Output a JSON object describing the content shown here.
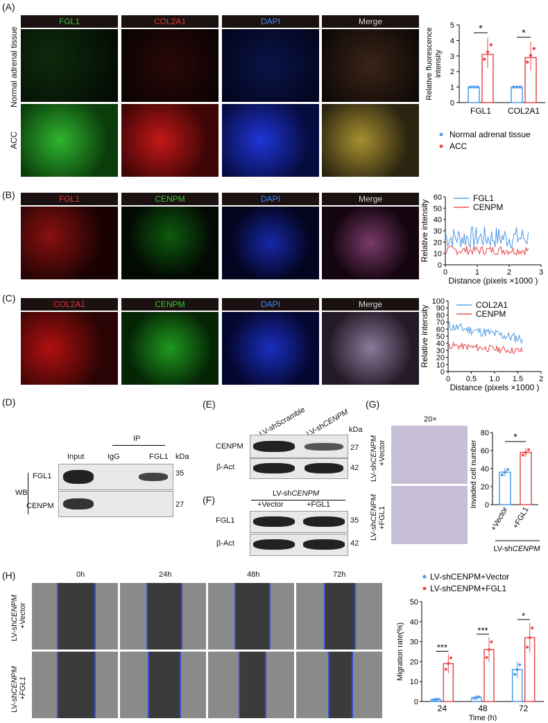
{
  "panel_labels": {
    "A": "(A)",
    "B": "(B)",
    "C": "(C)",
    "D": "(D)",
    "E": "(E)",
    "F": "(F)",
    "G": "(G)",
    "H": "(H)"
  },
  "panelA": {
    "headers": [
      "FGL1",
      "COL2A1",
      "DAPI",
      "Merge"
    ],
    "rows": [
      "Normal adrenal tissue",
      "ACC"
    ],
    "chart_data": {
      "type": "bar",
      "categories": [
        "FGL1",
        "COL2A1"
      ],
      "series": [
        {
          "name": "Normal adrenal tissue",
          "values": [
            1.0,
            1.0
          ],
          "color": "#4a9be8"
        },
        {
          "name": "ACC",
          "values": [
            3.1,
            2.9
          ],
          "color": "#e84a4a"
        }
      ],
      "ylabel": "Relative fluorescence intensity",
      "ylim": [
        0,
        5
      ],
      "yticks": [
        "0",
        "1",
        "2",
        "3",
        "4",
        "5"
      ],
      "significance": [
        "*",
        "*"
      ],
      "legend": "bottom"
    }
  },
  "panelB": {
    "headers": [
      "FGL1",
      "CENPM",
      "DAPI",
      "Merge"
    ],
    "chart_data": {
      "type": "line",
      "xlabel": "Distance (pixels ×1000 )",
      "ylabel": "Relative intensity",
      "xticks": [
        "0",
        "1",
        "2",
        "3"
      ],
      "yticks": [
        "0",
        "10",
        "20",
        "30",
        "40",
        "50",
        "60"
      ],
      "xlim": [
        0,
        3
      ],
      "ylim": [
        0,
        60
      ],
      "series": [
        {
          "name": "FGL1",
          "color": "#5aa0e8"
        },
        {
          "name": "CENPM",
          "color": "#e85050"
        }
      ]
    }
  },
  "panelC": {
    "headers": [
      "COL2A1",
      "CENPM",
      "DAPI",
      "Merge"
    ],
    "chart_data": {
      "type": "line",
      "xlabel": "Distance (pixels ×1000 )",
      "ylabel": "Relative intensity",
      "xticks": [
        "0",
        "0.5",
        "1.0",
        "1.5",
        "2"
      ],
      "yticks": [
        "0",
        "10",
        "20",
        "30",
        "40",
        "50",
        "60",
        "70",
        "80",
        "90",
        "100"
      ],
      "xlim": [
        0,
        2
      ],
      "ylim": [
        0,
        100
      ],
      "series": [
        {
          "name": "COL2A1",
          "color": "#5aa0e8"
        },
        {
          "name": "CENPM",
          "color": "#e85050"
        }
      ]
    }
  },
  "panelD": {
    "ip": "IP",
    "input": "Input",
    "igg": "IgG",
    "fgl1": "FGL1",
    "kda": "kDa",
    "wb": "WB",
    "rows": [
      {
        "label": "FGL1",
        "kda": "35"
      },
      {
        "label": "CENPM",
        "kda": "27"
      }
    ]
  },
  "panelE": {
    "col1": "LV-shScramble",
    "col2_prefix": "LV-sh",
    "col2_gene": "CENPM",
    "kda": "kDa",
    "rows": [
      {
        "label": "CENPM",
        "kda": "27"
      },
      {
        "label": "β-Act",
        "kda": "42"
      }
    ]
  },
  "panelF": {
    "top_prefix": "LV-sh",
    "top_gene": "CENPM",
    "col1": "+Vector",
    "col2": "+FGL1",
    "rows": [
      {
        "label": "FGL1",
        "kda": "35"
      },
      {
        "label": "β-Act",
        "kda": "42"
      }
    ]
  },
  "panelG": {
    "mag": "20×",
    "row1_prefix": "LV-sh",
    "row1_gene": "CENPM",
    "row1_suffix": "+Vector",
    "row2_prefix": "LV-sh",
    "row2_gene": "CENPM",
    "row2_suffix": "+FGL1",
    "group_prefix": "LV-sh",
    "group_gene": "CENPM",
    "chart_data": {
      "type": "bar",
      "categories": [
        "+Vector",
        "+FGL1"
      ],
      "values": [
        36,
        58
      ],
      "colors": [
        "#4a9be8",
        "#e84a4a"
      ],
      "ylabel": "Invaded cell number",
      "ylim": [
        0,
        80
      ],
      "yticks": [
        "0",
        "20",
        "40",
        "60",
        "80"
      ],
      "significance": "*"
    }
  },
  "panelH": {
    "times": [
      "0h",
      "24h",
      "48h",
      "72h"
    ],
    "row1_prefix": "LV-sh",
    "row1_gene": "CENPM",
    "row1_suffix": "+Vector",
    "row2_prefix": "LV-sh",
    "row2_gene": "CENPM",
    "row2_suffix": "+FGL1",
    "legend1": "LV-shCENPM+Vector",
    "legend2": "LV-shCENPM+FGL1",
    "chart_data": {
      "type": "bar",
      "categories": [
        "24",
        "48",
        "72"
      ],
      "series": [
        {
          "name": "LV-shCENPM+Vector",
          "values": [
            1,
            2,
            16
          ],
          "color": "#4a9be8"
        },
        {
          "name": "LV-shCENPM+FGL1",
          "values": [
            19,
            26,
            32
          ],
          "color": "#e84a4a"
        }
      ],
      "xlabel": "Time (h)",
      "ylabel": "Migration rate(%)",
      "ylim": [
        0,
        50
      ],
      "yticks": [
        "0",
        "10",
        "20",
        "30",
        "40",
        "50"
      ],
      "significance": [
        "***",
        "***",
        "*"
      ]
    }
  }
}
